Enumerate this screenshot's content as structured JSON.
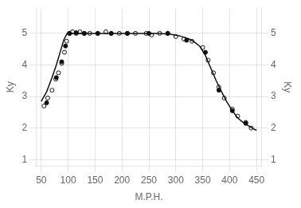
{
  "chart_data": {
    "type": "scatter",
    "xlabel": "M.P.H.",
    "ylabel": "Ky",
    "y2label": "Ky",
    "xlim": [
      40,
      460
    ],
    "ylim": [
      0.8,
      5.8
    ],
    "y2lim": [
      0.8,
      5.8
    ],
    "xticks": [
      50,
      100,
      150,
      200,
      250,
      300,
      350,
      400,
      450
    ],
    "yticks": [
      1,
      2,
      3,
      4,
      5
    ],
    "y2ticks": [
      1,
      2,
      3,
      4,
      5
    ],
    "grid": true,
    "series": [
      {
        "type": "line",
        "color": "#111111",
        "marker": "none",
        "x": [
          50,
          60,
          70,
          78,
          85,
          92,
          98,
          105,
          115,
          130,
          150,
          170,
          190,
          210,
          230,
          250,
          270,
          290,
          305,
          315,
          325,
          335,
          345,
          355,
          365,
          375,
          385,
          395,
          405,
          415,
          425,
          435,
          445,
          450
        ],
        "values": [
          2.85,
          3.15,
          3.6,
          4.0,
          4.4,
          4.8,
          5.0,
          5.0,
          5.0,
          5.0,
          5.0,
          5.0,
          5.0,
          5.0,
          5.0,
          5.0,
          5.0,
          4.97,
          4.93,
          4.88,
          4.82,
          4.72,
          4.58,
          4.3,
          3.9,
          3.5,
          3.15,
          2.82,
          2.55,
          2.32,
          2.18,
          2.07,
          1.97,
          1.93
        ]
      },
      {
        "type": "scatter",
        "color": "#111111",
        "marker": "ring",
        "x": [
          55,
          62,
          70,
          77,
          82,
          88,
          93,
          97,
          102,
          108,
          115,
          122,
          130,
          140,
          155,
          170,
          180,
          195,
          210,
          225,
          245,
          255,
          270,
          285,
          300,
          315,
          330,
          350,
          360,
          370,
          380,
          390,
          405,
          415,
          430,
          440
        ],
        "values": [
          2.7,
          2.95,
          3.2,
          3.55,
          3.75,
          4.05,
          4.4,
          4.75,
          5.0,
          5.05,
          5.0,
          5.05,
          5.0,
          5.0,
          5.0,
          5.05,
          5.0,
          5.0,
          5.0,
          5.0,
          5.0,
          4.95,
          5.0,
          5.0,
          4.9,
          4.82,
          4.75,
          4.55,
          4.15,
          3.75,
          3.3,
          2.95,
          2.6,
          2.38,
          2.18,
          2.0
        ]
      },
      {
        "type": "scatter",
        "color": "#111111",
        "marker": "circle",
        "x": [
          60,
          78,
          88,
          95,
          103,
          115,
          130,
          155,
          180,
          210,
          250,
          285,
          320,
          355,
          380,
          405,
          430
        ],
        "values": [
          2.8,
          3.6,
          4.1,
          4.6,
          5.0,
          5.02,
          5.0,
          5.0,
          5.0,
          5.0,
          5.0,
          5.0,
          4.78,
          4.4,
          3.2,
          2.55,
          2.15
        ]
      }
    ]
  }
}
